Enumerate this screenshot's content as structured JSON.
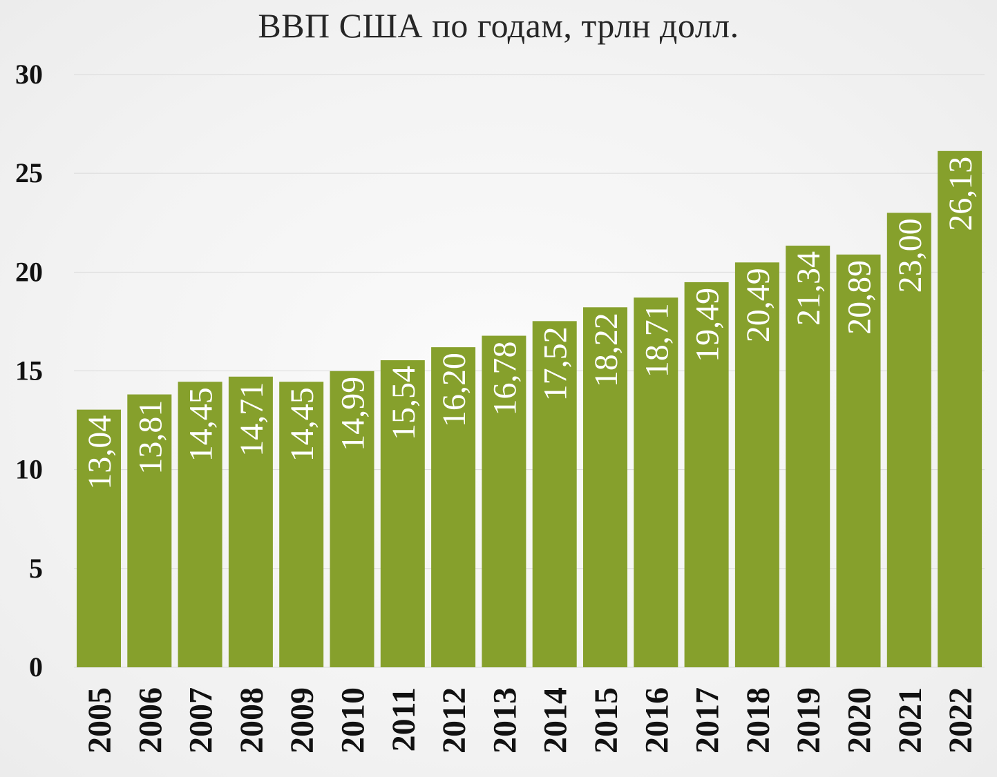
{
  "chart_data": {
    "type": "bar",
    "title": "ВВП США по годам, трлн долл.",
    "xlabel": "",
    "ylabel": "",
    "categories": [
      "2005",
      "2006",
      "2007",
      "2008",
      "2009",
      "2010",
      "2011",
      "2012",
      "2013",
      "2014",
      "2015",
      "2016",
      "2017",
      "2018",
      "2019",
      "2020",
      "2021",
      "2022"
    ],
    "values": [
      13.04,
      13.81,
      14.45,
      14.71,
      14.45,
      14.99,
      15.54,
      16.2,
      16.78,
      17.52,
      18.22,
      18.71,
      19.49,
      20.49,
      21.34,
      20.89,
      23.0,
      26.13
    ],
    "data_labels": [
      "13,04",
      "13,81",
      "14,45",
      "14,71",
      "14,45",
      "14,99",
      "15,54",
      "16,20",
      "16,78",
      "17,52",
      "18,22",
      "18,71",
      "19,49",
      "20,49",
      "21,34",
      "20,89",
      "23,00",
      "26,13"
    ],
    "ylim": [
      0,
      30
    ],
    "yticks": [
      "0",
      "5",
      "10",
      "15",
      "20",
      "25",
      "30"
    ],
    "grid": true,
    "legend": "none",
    "colors": {
      "bar": "#86A02C",
      "grid": "#d9d9d9",
      "data_label": "#ffffff"
    }
  }
}
